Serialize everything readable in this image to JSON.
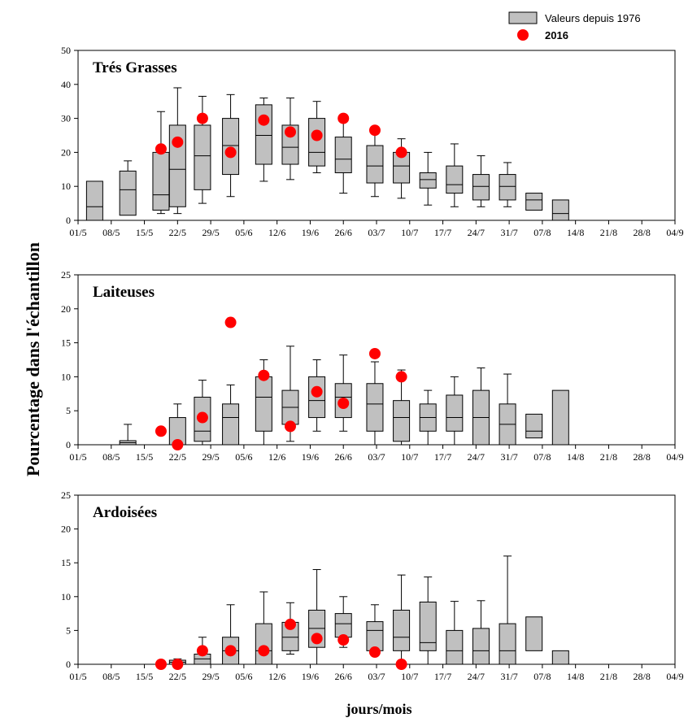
{
  "chart_data": {
    "type": "box",
    "ylabel": "Pourcentage dans l'échantillon",
    "xlabel": "jours/mois",
    "x_ticks": [
      "01/5",
      "08/5",
      "15/5",
      "22/5",
      "29/5",
      "05/6",
      "12/6",
      "19/6",
      "26/6",
      "03/7",
      "10/7",
      "17/7",
      "24/7",
      "31/7",
      "07/8",
      "14/8",
      "21/8",
      "28/8",
      "04/9"
    ],
    "legend": {
      "box_label": "Valeurs depuis 1976",
      "point_label": "2016",
      "box_color": "#c0c0c0",
      "point_color": "#ff0000"
    },
    "panels": [
      {
        "title": "Trés Grasses",
        "ylim": [
          0,
          50
        ],
        "yticks": [
          0,
          10,
          20,
          30,
          40,
          50
        ],
        "boxes": [
          {
            "x": 0.5,
            "min": 0,
            "q1": 0,
            "median": 4,
            "q3": 11.5,
            "max": 11.5
          },
          {
            "x": 1.5,
            "min": 1.5,
            "q1": 1.5,
            "median": 9,
            "q3": 14.5,
            "max": 17.5
          },
          {
            "x": 2.5,
            "min": 2,
            "q1": 3,
            "median": 7.5,
            "q3": 20,
            "max": 32
          },
          {
            "x": 3.0,
            "min": 2,
            "q1": 4,
            "median": 15,
            "q3": 28,
            "max": 39
          },
          {
            "x": 3.75,
            "min": 5,
            "q1": 9,
            "median": 19,
            "q3": 28,
            "max": 36.5
          },
          {
            "x": 4.6,
            "min": 7,
            "q1": 13.5,
            "median": 22,
            "q3": 30,
            "max": 37
          },
          {
            "x": 5.6,
            "min": 11.5,
            "q1": 16.5,
            "median": 25,
            "q3": 34,
            "max": 36
          },
          {
            "x": 6.4,
            "min": 12,
            "q1": 16.5,
            "median": 21.5,
            "q3": 28,
            "max": 36
          },
          {
            "x": 7.2,
            "min": 14,
            "q1": 16,
            "median": 20,
            "q3": 30,
            "max": 35
          },
          {
            "x": 8.0,
            "min": 8,
            "q1": 14,
            "median": 18,
            "q3": 24.5,
            "max": 30
          },
          {
            "x": 8.95,
            "min": 7,
            "q1": 11,
            "median": 16,
            "q3": 22,
            "max": 26.5
          },
          {
            "x": 9.75,
            "min": 6.5,
            "q1": 11,
            "median": 16,
            "q3": 20,
            "max": 24
          },
          {
            "x": 10.55,
            "min": 4.5,
            "q1": 9.5,
            "median": 12,
            "q3": 14,
            "max": 20
          },
          {
            "x": 11.35,
            "min": 4,
            "q1": 8,
            "median": 10.5,
            "q3": 16,
            "max": 22.5
          },
          {
            "x": 12.15,
            "min": 4,
            "q1": 6,
            "median": 10,
            "q3": 13.5,
            "max": 19
          },
          {
            "x": 12.95,
            "min": 4,
            "q1": 6,
            "median": 10,
            "q3": 13.5,
            "max": 17
          },
          {
            "x": 13.75,
            "min": 3,
            "q1": 3,
            "median": 6,
            "q3": 8,
            "max": 8
          },
          {
            "x": 14.55,
            "min": 0,
            "q1": 0,
            "median": 2,
            "q3": 6,
            "max": 6
          }
        ],
        "points": [
          {
            "x": 2.5,
            "y": 21
          },
          {
            "x": 3.0,
            "y": 23
          },
          {
            "x": 3.75,
            "y": 30
          },
          {
            "x": 4.6,
            "y": 20
          },
          {
            "x": 5.6,
            "y": 29.5
          },
          {
            "x": 6.4,
            "y": 26
          },
          {
            "x": 7.2,
            "y": 25
          },
          {
            "x": 8.0,
            "y": 30
          },
          {
            "x": 8.95,
            "y": 26.5
          },
          {
            "x": 9.75,
            "y": 20
          }
        ]
      },
      {
        "title": "Laiteuses",
        "ylim": [
          0,
          25
        ],
        "yticks": [
          0,
          5,
          10,
          15,
          20,
          25
        ],
        "boxes": [
          {
            "x": 1.5,
            "min": 0,
            "q1": 0,
            "median": 0.3,
            "q3": 0.6,
            "max": 3
          },
          {
            "x": 3.0,
            "min": 0,
            "q1": 0,
            "median": 0,
            "q3": 4,
            "max": 6
          },
          {
            "x": 3.75,
            "min": 0,
            "q1": 0.5,
            "median": 2,
            "q3": 7,
            "max": 9.5
          },
          {
            "x": 4.6,
            "min": 0,
            "q1": 0,
            "median": 4,
            "q3": 6,
            "max": 8.8
          },
          {
            "x": 5.6,
            "min": 0,
            "q1": 2,
            "median": 7,
            "q3": 10,
            "max": 12.5
          },
          {
            "x": 6.4,
            "min": 0.5,
            "q1": 3,
            "median": 5.5,
            "q3": 8,
            "max": 14.5
          },
          {
            "x": 7.2,
            "min": 2,
            "q1": 4,
            "median": 6.5,
            "q3": 10,
            "max": 12.5
          },
          {
            "x": 8.0,
            "min": 2,
            "q1": 4,
            "median": 7,
            "q3": 9,
            "max": 13.2
          },
          {
            "x": 8.95,
            "min": 0,
            "q1": 2,
            "median": 6,
            "q3": 9,
            "max": 12.2
          },
          {
            "x": 9.75,
            "min": 0,
            "q1": 0.5,
            "median": 4,
            "q3": 6.5,
            "max": 11
          },
          {
            "x": 10.55,
            "min": 0,
            "q1": 2,
            "median": 4,
            "q3": 6,
            "max": 8
          },
          {
            "x": 11.35,
            "min": 0,
            "q1": 2,
            "median": 4,
            "q3": 7.3,
            "max": 10
          },
          {
            "x": 12.15,
            "min": 0,
            "q1": 0,
            "median": 4,
            "q3": 8,
            "max": 11.3
          },
          {
            "x": 12.95,
            "min": 0,
            "q1": 0,
            "median": 3,
            "q3": 6,
            "max": 10.4
          },
          {
            "x": 13.75,
            "min": 1,
            "q1": 1,
            "median": 2,
            "q3": 4.5,
            "max": 4.5
          },
          {
            "x": 14.55,
            "min": 0,
            "q1": 0,
            "median": 0,
            "q3": 8,
            "max": 8
          }
        ],
        "points": [
          {
            "x": 2.5,
            "y": 2
          },
          {
            "x": 3.0,
            "y": 0
          },
          {
            "x": 3.75,
            "y": 4
          },
          {
            "x": 4.6,
            "y": 18
          },
          {
            "x": 5.6,
            "y": 10.2
          },
          {
            "x": 6.4,
            "y": 2.7
          },
          {
            "x": 7.2,
            "y": 7.8
          },
          {
            "x": 8.0,
            "y": 6.1
          },
          {
            "x": 8.95,
            "y": 13.4
          },
          {
            "x": 9.75,
            "y": 10
          }
        ]
      },
      {
        "title": "Ardoisées",
        "ylim": [
          0,
          25
        ],
        "yticks": [
          0,
          5,
          10,
          15,
          20,
          25
        ],
        "boxes": [
          {
            "x": 3.0,
            "min": 0,
            "q1": 0,
            "median": 0.3,
            "q3": 0.6,
            "max": 0.8
          },
          {
            "x": 3.75,
            "min": 0,
            "q1": 0,
            "median": 0.8,
            "q3": 1.5,
            "max": 4
          },
          {
            "x": 4.6,
            "min": 0,
            "q1": 0,
            "median": 2,
            "q3": 4,
            "max": 8.8
          },
          {
            "x": 5.6,
            "min": 0,
            "q1": 0,
            "median": 2,
            "q3": 6,
            "max": 10.7
          },
          {
            "x": 6.4,
            "min": 1.5,
            "q1": 2,
            "median": 4,
            "q3": 6.2,
            "max": 9.1
          },
          {
            "x": 7.2,
            "min": 0,
            "q1": 2.5,
            "median": 5.3,
            "q3": 8,
            "max": 14
          },
          {
            "x": 8.0,
            "min": 2.5,
            "q1": 4,
            "median": 6,
            "q3": 7.5,
            "max": 10
          },
          {
            "x": 8.95,
            "min": 1.5,
            "q1": 2,
            "median": 5,
            "q3": 6.3,
            "max": 8.8
          },
          {
            "x": 9.75,
            "min": 0,
            "q1": 2,
            "median": 4,
            "q3": 8,
            "max": 13.2
          },
          {
            "x": 10.55,
            "min": 0,
            "q1": 2,
            "median": 3.2,
            "q3": 9.2,
            "max": 12.9
          },
          {
            "x": 11.35,
            "min": 0,
            "q1": 0,
            "median": 2,
            "q3": 5,
            "max": 9.3
          },
          {
            "x": 12.15,
            "min": 0,
            "q1": 0,
            "median": 2,
            "q3": 5.3,
            "max": 9.4
          },
          {
            "x": 12.95,
            "min": 0,
            "q1": 0,
            "median": 2,
            "q3": 6,
            "max": 16
          },
          {
            "x": 13.75,
            "min": 2,
            "q1": 2,
            "median": 2,
            "q3": 7,
            "max": 7
          },
          {
            "x": 14.55,
            "min": 0,
            "q1": 0,
            "median": 0,
            "q3": 2,
            "max": 2
          }
        ],
        "points": [
          {
            "x": 2.5,
            "y": 0
          },
          {
            "x": 3.0,
            "y": 0
          },
          {
            "x": 3.75,
            "y": 2
          },
          {
            "x": 4.6,
            "y": 2
          },
          {
            "x": 5.6,
            "y": 2
          },
          {
            "x": 6.4,
            "y": 5.9
          },
          {
            "x": 7.2,
            "y": 3.8
          },
          {
            "x": 8.0,
            "y": 3.6
          },
          {
            "x": 8.95,
            "y": 1.8
          },
          {
            "x": 9.75,
            "y": 0
          }
        ]
      }
    ]
  }
}
